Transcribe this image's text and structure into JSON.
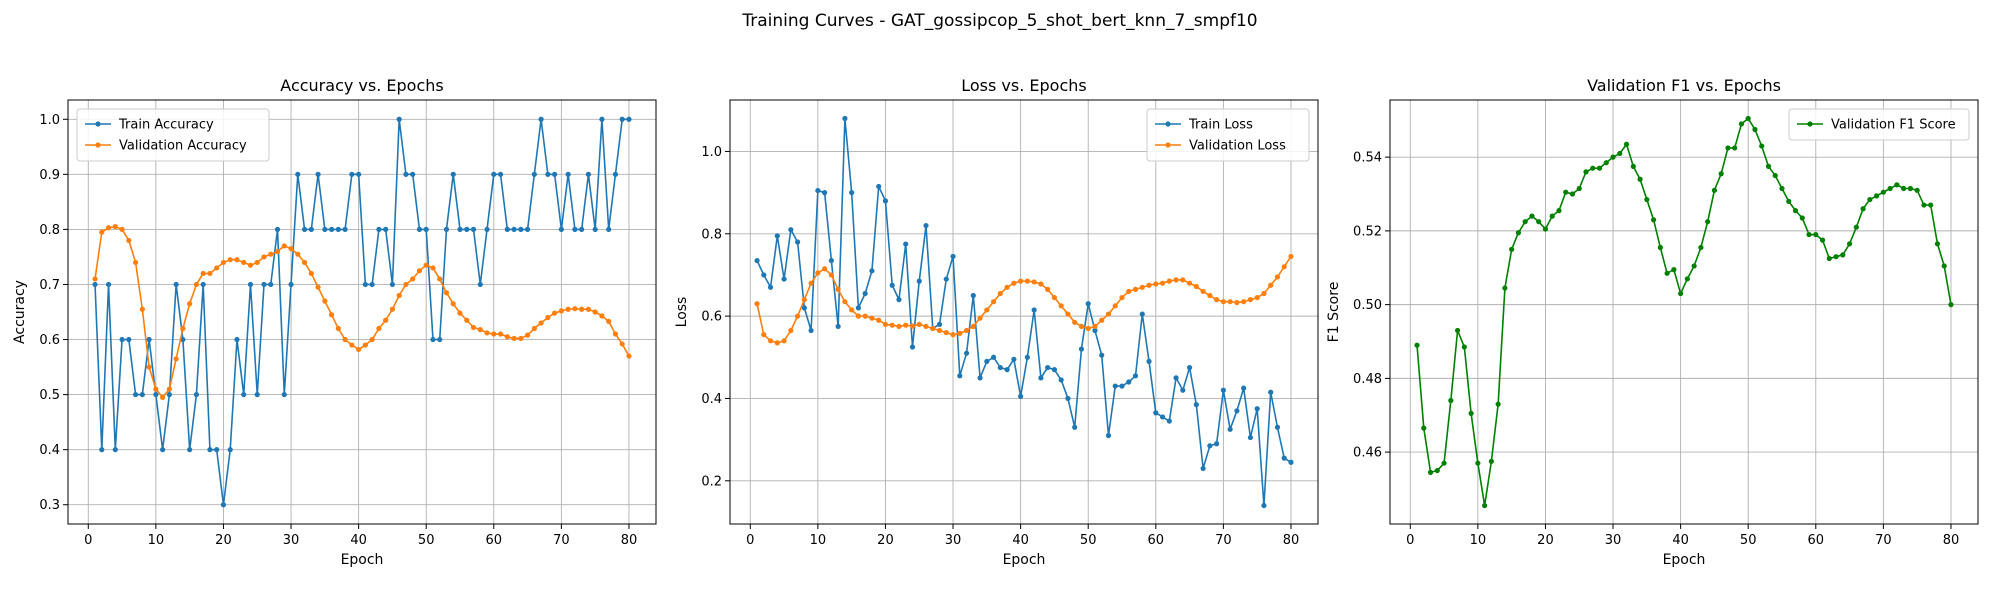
{
  "figure": {
    "suptitle": "Training Curves - GAT_gossipcop_5_shot_bert_knn_7_smpf10"
  },
  "colors": {
    "blue": "#1f77b4",
    "orange": "#ff7f0e",
    "green": "#008000"
  },
  "chart_data": [
    {
      "type": "line",
      "title": "Accuracy vs. Epochs",
      "xlabel": "Epoch",
      "ylabel": "Accuracy",
      "xlim": [
        -3,
        84
      ],
      "ylim": [
        0.265,
        1.035
      ],
      "xticks": [
        "0",
        "10",
        "20",
        "30",
        "40",
        "50",
        "60",
        "70",
        "80"
      ],
      "yticks": [
        "0.3",
        "0.4",
        "0.5",
        "0.6",
        "0.7",
        "0.8",
        "0.9",
        "1.0"
      ],
      "grid": true,
      "legend": "upper left",
      "series": [
        {
          "name": "Train Accuracy",
          "color": "#1f77b4",
          "values": [
            0.7,
            0.4,
            0.7,
            0.4,
            0.6,
            0.6,
            0.5,
            0.5,
            0.6,
            0.5,
            0.4,
            0.5,
            0.7,
            0.6,
            0.4,
            0.5,
            0.7,
            0.4,
            0.4,
            0.3,
            0.4,
            0.6,
            0.5,
            0.7,
            0.5,
            0.7,
            0.7,
            0.8,
            0.5,
            0.7,
            0.9,
            0.8,
            0.8,
            0.9,
            0.8,
            0.8,
            0.8,
            0.8,
            0.9,
            0.9,
            0.7,
            0.7,
            0.8,
            0.8,
            0.7,
            1.0,
            0.9,
            0.9,
            0.8,
            0.8,
            0.6,
            0.6,
            0.8,
            0.9,
            0.8,
            0.8,
            0.8,
            0.7,
            0.8,
            0.9,
            0.9,
            0.8,
            0.8,
            0.8,
            0.8,
            0.9,
            1.0,
            0.9,
            0.9,
            0.8,
            0.9,
            0.8,
            0.8,
            0.9,
            0.8,
            1.0,
            0.8,
            0.9,
            1.0,
            1.0
          ]
        },
        {
          "name": "Validation Accuracy",
          "color": "#ff7f0e",
          "values": [
            0.71,
            0.795,
            0.803,
            0.805,
            0.8,
            0.78,
            0.74,
            0.655,
            0.55,
            0.51,
            0.495,
            0.51,
            0.565,
            0.62,
            0.665,
            0.7,
            0.72,
            0.72,
            0.73,
            0.74,
            0.745,
            0.745,
            0.74,
            0.735,
            0.74,
            0.75,
            0.755,
            0.76,
            0.77,
            0.765,
            0.755,
            0.74,
            0.72,
            0.695,
            0.67,
            0.645,
            0.62,
            0.6,
            0.59,
            0.582,
            0.59,
            0.6,
            0.62,
            0.635,
            0.655,
            0.68,
            0.7,
            0.71,
            0.725,
            0.735,
            0.73,
            0.71,
            0.685,
            0.665,
            0.648,
            0.635,
            0.622,
            0.618,
            0.612,
            0.61,
            0.61,
            0.605,
            0.602,
            0.602,
            0.608,
            0.62,
            0.63,
            0.64,
            0.648,
            0.652,
            0.655,
            0.656,
            0.655,
            0.655,
            0.65,
            0.643,
            0.633,
            0.61,
            0.592,
            0.57
          ]
        }
      ]
    },
    {
      "type": "line",
      "title": "Loss vs. Epochs",
      "xlabel": "Epoch",
      "ylabel": "Loss",
      "xlim": [
        -3,
        84
      ],
      "ylim": [
        0.095,
        1.125
      ],
      "xticks": [
        "0",
        "10",
        "20",
        "30",
        "40",
        "50",
        "60",
        "70",
        "80"
      ],
      "yticks": [
        "0.2",
        "0.4",
        "0.6",
        "0.8",
        "1.0"
      ],
      "grid": true,
      "legend": "upper right",
      "series": [
        {
          "name": "Train Loss",
          "color": "#1f77b4",
          "values": [
            0.735,
            0.7,
            0.67,
            0.795,
            0.69,
            0.81,
            0.78,
            0.62,
            0.565,
            0.905,
            0.9,
            0.735,
            0.575,
            1.08,
            0.9,
            0.62,
            0.655,
            0.71,
            0.915,
            0.88,
            0.675,
            0.64,
            0.775,
            0.525,
            0.685,
            0.82,
            0.57,
            0.58,
            0.69,
            0.745,
            0.455,
            0.51,
            0.65,
            0.45,
            0.49,
            0.5,
            0.475,
            0.47,
            0.495,
            0.405,
            0.5,
            0.615,
            0.45,
            0.475,
            0.47,
            0.445,
            0.4,
            0.33,
            0.52,
            0.63,
            0.565,
            0.505,
            0.31,
            0.43,
            0.43,
            0.44,
            0.455,
            0.605,
            0.49,
            0.365,
            0.355,
            0.345,
            0.45,
            0.42,
            0.475,
            0.385,
            0.23,
            0.285,
            0.29,
            0.42,
            0.325,
            0.37,
            0.425,
            0.305,
            0.375,
            0.14,
            0.415,
            0.33,
            0.255,
            0.245
          ]
        },
        {
          "name": "Validation Loss",
          "color": "#ff7f0e",
          "values": [
            0.63,
            0.555,
            0.54,
            0.535,
            0.54,
            0.565,
            0.6,
            0.64,
            0.68,
            0.705,
            0.715,
            0.7,
            0.665,
            0.635,
            0.615,
            0.6,
            0.6,
            0.595,
            0.59,
            0.58,
            0.578,
            0.575,
            0.578,
            0.576,
            0.58,
            0.575,
            0.57,
            0.565,
            0.56,
            0.555,
            0.558,
            0.565,
            0.575,
            0.595,
            0.615,
            0.635,
            0.655,
            0.67,
            0.68,
            0.685,
            0.685,
            0.683,
            0.678,
            0.665,
            0.645,
            0.625,
            0.605,
            0.585,
            0.575,
            0.57,
            0.575,
            0.59,
            0.605,
            0.625,
            0.645,
            0.66,
            0.665,
            0.67,
            0.675,
            0.678,
            0.68,
            0.685,
            0.688,
            0.688,
            0.68,
            0.672,
            0.66,
            0.65,
            0.64,
            0.635,
            0.635,
            0.633,
            0.635,
            0.64,
            0.645,
            0.655,
            0.675,
            0.695,
            0.72,
            0.745
          ]
        }
      ]
    },
    {
      "type": "line",
      "title": "Validation F1 vs. Epochs",
      "xlabel": "Epoch",
      "ylabel": "F1 Score",
      "xlim": [
        -3,
        84
      ],
      "ylim": [
        0.4405,
        0.5555
      ],
      "xticks": [
        "0",
        "10",
        "20",
        "30",
        "40",
        "50",
        "60",
        "70",
        "80"
      ],
      "yticks": [
        "0.46",
        "0.48",
        "0.50",
        "0.52",
        "0.54"
      ],
      "grid": true,
      "legend": "upper right",
      "series": [
        {
          "name": "Validation F1 Score",
          "color": "#008000",
          "values": [
            0.489,
            0.4665,
            0.4545,
            0.455,
            0.457,
            0.474,
            0.493,
            0.4885,
            0.4705,
            0.457,
            0.4455,
            0.4575,
            0.473,
            0.5045,
            0.515,
            0.5195,
            0.5225,
            0.524,
            0.5225,
            0.5205,
            0.524,
            0.5255,
            0.5305,
            0.53,
            0.5315,
            0.536,
            0.537,
            0.537,
            0.5385,
            0.54,
            0.541,
            0.5435,
            0.5375,
            0.534,
            0.5285,
            0.523,
            0.5155,
            0.5085,
            0.5095,
            0.503,
            0.507,
            0.5105,
            0.5155,
            0.5225,
            0.531,
            0.5355,
            0.5425,
            0.5425,
            0.549,
            0.5505,
            0.5475,
            0.543,
            0.5375,
            0.535,
            0.5315,
            0.528,
            0.5255,
            0.5235,
            0.519,
            0.519,
            0.5175,
            0.5125,
            0.513,
            0.5135,
            0.5165,
            0.521,
            0.526,
            0.5285,
            0.5295,
            0.5305,
            0.5315,
            0.5325,
            0.5315,
            0.5315,
            0.531,
            0.527,
            0.527,
            0.5165,
            0.5105,
            0.5
          ]
        }
      ]
    }
  ]
}
